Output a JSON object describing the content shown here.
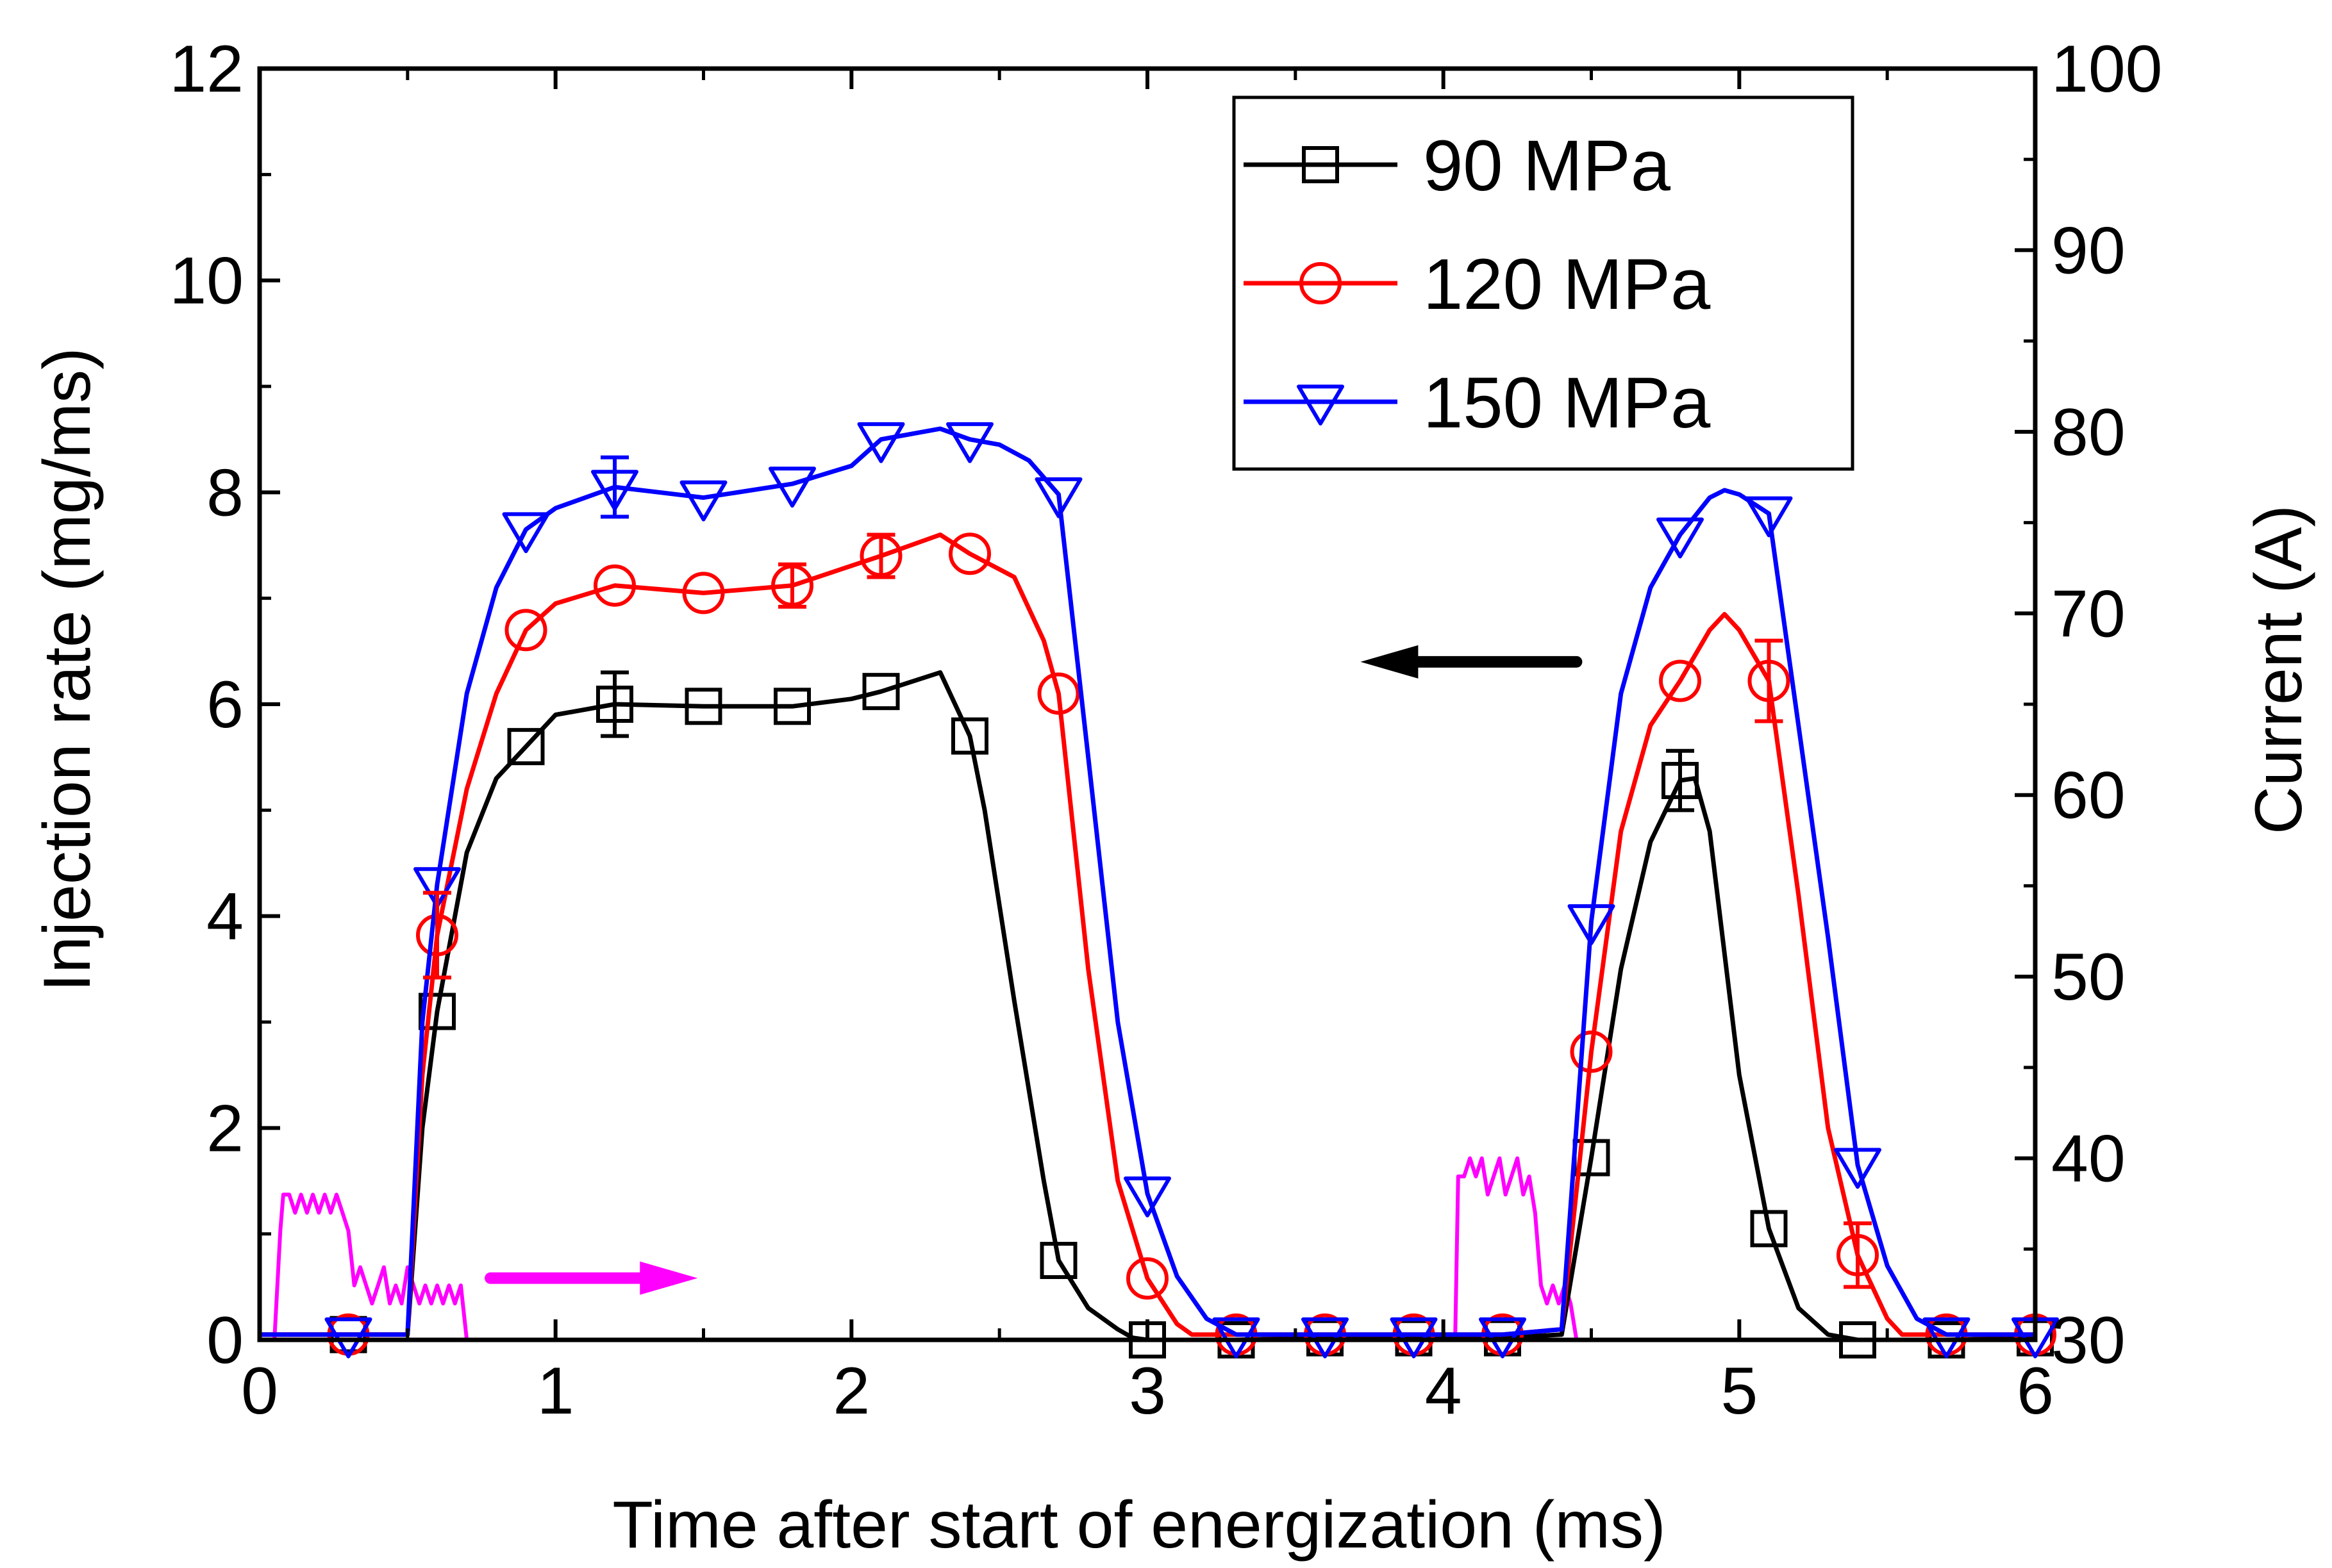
{
  "chart_data": {
    "type": "line",
    "title": "",
    "xlabel": "Time after start of energization (ms)",
    "ylabel": "Injection rate (mg/ms)",
    "y2label": "Current (A)",
    "xlim": [
      0,
      6
    ],
    "ylim": [
      0,
      12
    ],
    "y2lim": [
      30,
      100
    ],
    "x_ticks": [
      "0",
      "1",
      "2",
      "3",
      "4",
      "5",
      "6"
    ],
    "y_ticks": [
      "0",
      "2",
      "4",
      "6",
      "8",
      "10",
      "12"
    ],
    "y2_ticks": [
      "30",
      "40",
      "50",
      "60",
      "70",
      "80",
      "90",
      "100"
    ],
    "grid": false,
    "legend_position": "top-right",
    "series": [
      {
        "name": "90 MPa",
        "color": "#000000",
        "marker": "square",
        "x": [
          0.0,
          0.3,
          0.45,
          0.5,
          0.55,
          0.6,
          0.7,
          0.8,
          0.9,
          1.0,
          1.2,
          1.5,
          1.8,
          2.0,
          2.1,
          2.3,
          2.4,
          2.45,
          2.55,
          2.65,
          2.7,
          2.8,
          2.9,
          2.95,
          3.0,
          3.3,
          3.6,
          3.9,
          4.2,
          4.4,
          4.5,
          4.6,
          4.7,
          4.8,
          4.85,
          4.9,
          5.0,
          5.1,
          5.2,
          5.3,
          5.4,
          5.7,
          6.0
        ],
        "y": [
          0.05,
          0.05,
          0.05,
          0.05,
          2.0,
          3.1,
          4.6,
          5.3,
          5.6,
          5.9,
          6.0,
          5.98,
          5.98,
          6.05,
          6.12,
          6.3,
          5.7,
          5.0,
          3.2,
          1.5,
          0.75,
          0.3,
          0.1,
          0.02,
          0.0,
          0.0,
          0.02,
          0.02,
          0.02,
          0.05,
          1.72,
          3.5,
          4.7,
          5.28,
          5.3,
          4.8,
          2.5,
          1.05,
          0.3,
          0.05,
          0.0,
          0.0,
          0.02
        ],
        "markers_x": [
          0.3,
          0.6,
          0.9,
          1.2,
          1.5,
          1.8,
          2.1,
          2.4,
          2.7,
          3.0,
          3.3,
          3.6,
          3.9,
          4.2,
          4.5,
          4.8,
          5.1,
          5.4,
          5.7,
          6.0
        ],
        "markers_y": [
          0.05,
          3.1,
          5.6,
          6.0,
          5.98,
          5.98,
          6.12,
          5.7,
          0.75,
          0.0,
          0.0,
          0.02,
          0.02,
          0.02,
          1.72,
          5.28,
          1.05,
          0.0,
          0.0,
          0.02
        ]
      },
      {
        "name": "120 MPa",
        "color": "#ff0000",
        "marker": "circle",
        "x": [
          0.0,
          0.3,
          0.45,
          0.5,
          0.55,
          0.6,
          0.7,
          0.8,
          0.9,
          1.0,
          1.2,
          1.5,
          1.8,
          2.1,
          2.3,
          2.4,
          2.55,
          2.65,
          2.7,
          2.8,
          2.9,
          3.0,
          3.1,
          3.15,
          3.3,
          3.6,
          3.9,
          4.2,
          4.4,
          4.5,
          4.6,
          4.7,
          4.8,
          4.9,
          4.95,
          5.0,
          5.1,
          5.2,
          5.3,
          5.4,
          5.5,
          5.55,
          5.7,
          6.0
        ],
        "y": [
          0.05,
          0.05,
          0.05,
          0.05,
          2.5,
          3.82,
          5.2,
          6.1,
          6.7,
          6.95,
          7.12,
          7.05,
          7.12,
          7.4,
          7.6,
          7.42,
          7.2,
          6.6,
          6.1,
          3.5,
          1.5,
          0.58,
          0.15,
          0.05,
          0.05,
          0.05,
          0.05,
          0.05,
          0.1,
          2.72,
          4.8,
          5.8,
          6.22,
          6.7,
          6.85,
          6.7,
          6.22,
          4.2,
          2.0,
          0.8,
          0.2,
          0.05,
          0.05,
          0.05
        ],
        "markers_x": [
          0.3,
          0.6,
          0.9,
          1.2,
          1.5,
          1.8,
          2.1,
          2.4,
          2.7,
          3.0,
          3.3,
          3.6,
          3.9,
          4.2,
          4.5,
          4.8,
          5.1,
          5.4,
          5.7,
          6.0
        ],
        "markers_y": [
          0.05,
          3.82,
          6.7,
          7.12,
          7.05,
          7.12,
          7.4,
          7.42,
          6.1,
          0.58,
          0.05,
          0.05,
          0.05,
          0.05,
          2.72,
          6.22,
          6.22,
          0.8,
          0.05,
          0.05
        ]
      },
      {
        "name": "150 MPa",
        "color": "#0000ff",
        "marker": "triangle-down",
        "x": [
          0.0,
          0.3,
          0.45,
          0.5,
          0.55,
          0.6,
          0.7,
          0.8,
          0.9,
          1.0,
          1.2,
          1.5,
          1.8,
          2.0,
          2.1,
          2.3,
          2.4,
          2.5,
          2.6,
          2.7,
          2.8,
          2.9,
          3.0,
          3.1,
          3.2,
          3.3,
          3.6,
          3.9,
          4.2,
          4.4,
          4.5,
          4.6,
          4.7,
          4.8,
          4.9,
          4.95,
          5.0,
          5.1,
          5.2,
          5.3,
          5.4,
          5.5,
          5.6,
          5.7,
          6.0
        ],
        "y": [
          0.05,
          0.05,
          0.05,
          0.05,
          3.0,
          4.3,
          6.1,
          7.1,
          7.65,
          7.85,
          8.05,
          7.95,
          8.08,
          8.25,
          8.5,
          8.6,
          8.5,
          8.45,
          8.3,
          7.98,
          5.5,
          3.0,
          1.38,
          0.6,
          0.2,
          0.05,
          0.05,
          0.05,
          0.05,
          0.1,
          3.95,
          6.1,
          7.1,
          7.6,
          7.95,
          8.02,
          7.98,
          7.8,
          5.8,
          3.8,
          1.65,
          0.7,
          0.2,
          0.05,
          0.05
        ],
        "markers_x": [
          0.3,
          0.6,
          0.9,
          1.2,
          1.5,
          1.8,
          2.1,
          2.4,
          2.7,
          3.0,
          3.3,
          3.6,
          3.9,
          4.2,
          4.5,
          4.8,
          5.1,
          5.4,
          5.7,
          6.0
        ],
        "markers_y": [
          0.05,
          4.3,
          7.65,
          8.05,
          7.95,
          8.08,
          8.5,
          8.5,
          7.98,
          1.38,
          0.05,
          0.05,
          0.05,
          0.05,
          3.95,
          7.6,
          7.8,
          1.65,
          0.05,
          0.05
        ]
      }
    ],
    "error_bars": [
      {
        "series": "90 MPa",
        "x": 1.2,
        "y": 6.0,
        "err": 0.3
      },
      {
        "series": "90 MPa",
        "x": 4.8,
        "y": 5.28,
        "err": 0.28
      },
      {
        "series": "120 MPa",
        "x": 2.1,
        "y": 7.4,
        "err": 0.2
      },
      {
        "series": "120 MPa",
        "x": 1.8,
        "y": 7.12,
        "err": 0.2
      },
      {
        "series": "120 MPa",
        "x": 5.1,
        "y": 6.22,
        "err": 0.38
      },
      {
        "series": "120 MPa",
        "x": 5.4,
        "y": 0.8,
        "err": 0.3
      },
      {
        "series": "120 MPa",
        "x": 0.6,
        "y": 3.82,
        "err": 0.4
      },
      {
        "series": "150 MPa",
        "x": 1.2,
        "y": 8.05,
        "err": 0.28
      }
    ],
    "current_trace": {
      "name": "Current",
      "axis": "right",
      "color": "#ff00ff",
      "x": [
        0.0,
        0.03,
        0.05,
        0.07,
        0.08,
        0.1,
        0.12,
        0.14,
        0.16,
        0.18,
        0.2,
        0.22,
        0.24,
        0.26,
        0.28,
        0.3,
        0.32,
        0.34,
        0.36,
        0.38,
        0.4,
        0.42,
        0.44,
        0.46,
        0.48,
        0.5,
        0.52,
        0.54,
        0.56,
        0.58,
        0.6,
        0.62,
        0.64,
        0.66,
        0.68,
        0.7,
        0.72,
        4.0,
        4.02,
        4.04,
        4.05,
        4.07,
        4.09,
        4.11,
        4.13,
        4.15,
        4.17,
        4.19,
        4.21,
        4.23,
        4.25,
        4.27,
        4.29,
        4.31,
        4.33,
        4.35,
        4.37,
        4.39,
        4.41,
        4.43,
        4.45
      ],
      "y": [
        30,
        30,
        30,
        36,
        38,
        38,
        37,
        38,
        37,
        38,
        37,
        38,
        37,
        38,
        37,
        36,
        33,
        34,
        33,
        32,
        33,
        34,
        32,
        33,
        32,
        34,
        33,
        32,
        33,
        32,
        33,
        32,
        33,
        32,
        33,
        30,
        30,
        30,
        30,
        30,
        39,
        39,
        40,
        39,
        40,
        38,
        39,
        40,
        38,
        39,
        40,
        38,
        39,
        37,
        33,
        32,
        33,
        32,
        33,
        32,
        30
      ]
    },
    "annotations": [
      {
        "type": "arrow",
        "direction": "left",
        "color": "#000000",
        "points_to": "left axis (injection rate)"
      },
      {
        "type": "arrow",
        "direction": "right",
        "color": "#ff00ff",
        "points_to": "right axis (current)"
      }
    ]
  }
}
